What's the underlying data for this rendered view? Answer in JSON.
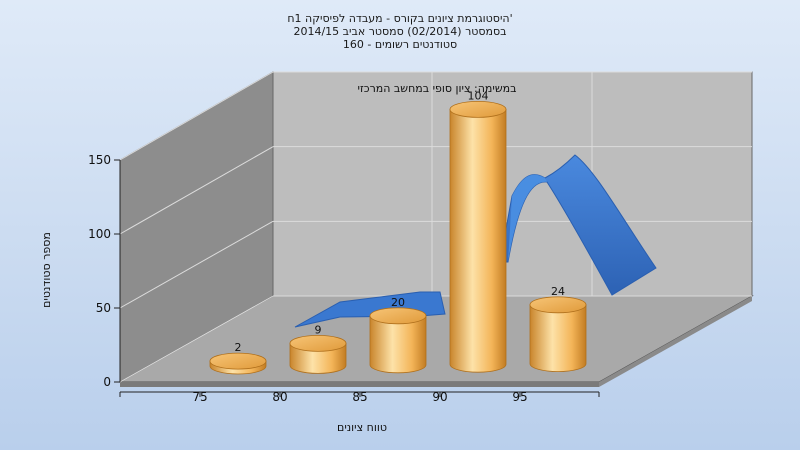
{
  "chart_data": {
    "type": "bar",
    "title_lines": [
      "היסטוגרמת ציונים בקורס - מעבדה לפיסיקה 1ח'",
      "בסמסטר  (02/2014)  סמסטר אביב 2014/15",
      "סטודנטים רשומים - 160"
    ],
    "annotation": "במשימה: ציון סופי במחשב המרכזי",
    "xlabel": "טווח ציונים",
    "ylabel": "מספר סטודנטים",
    "ylim": [
      0,
      150
    ],
    "yticks": [
      "0",
      "50",
      "100",
      "150"
    ],
    "xticks": [
      "75",
      "80",
      "85",
      "90",
      "95"
    ],
    "categories": [
      "75",
      "80",
      "85",
      "90",
      "95"
    ],
    "series": [
      {
        "values": [
          2,
          9,
          20,
          104,
          24
        ]
      }
    ],
    "data_labels": [
      "2",
      "9",
      "20",
      "104",
      "24"
    ],
    "curve": "normal-distribution-ribbon",
    "grid": true,
    "colors": {
      "bar_light": "#fde2a8",
      "bar_mid": "#f4b558",
      "bar_dark": "#c27c22",
      "curve": "#3a78d0",
      "curve_dark": "#2a5fb0",
      "back_wall": "#bdbdbd",
      "side_wall": "#8d8d8d",
      "floor": "#a8a8a8"
    }
  }
}
